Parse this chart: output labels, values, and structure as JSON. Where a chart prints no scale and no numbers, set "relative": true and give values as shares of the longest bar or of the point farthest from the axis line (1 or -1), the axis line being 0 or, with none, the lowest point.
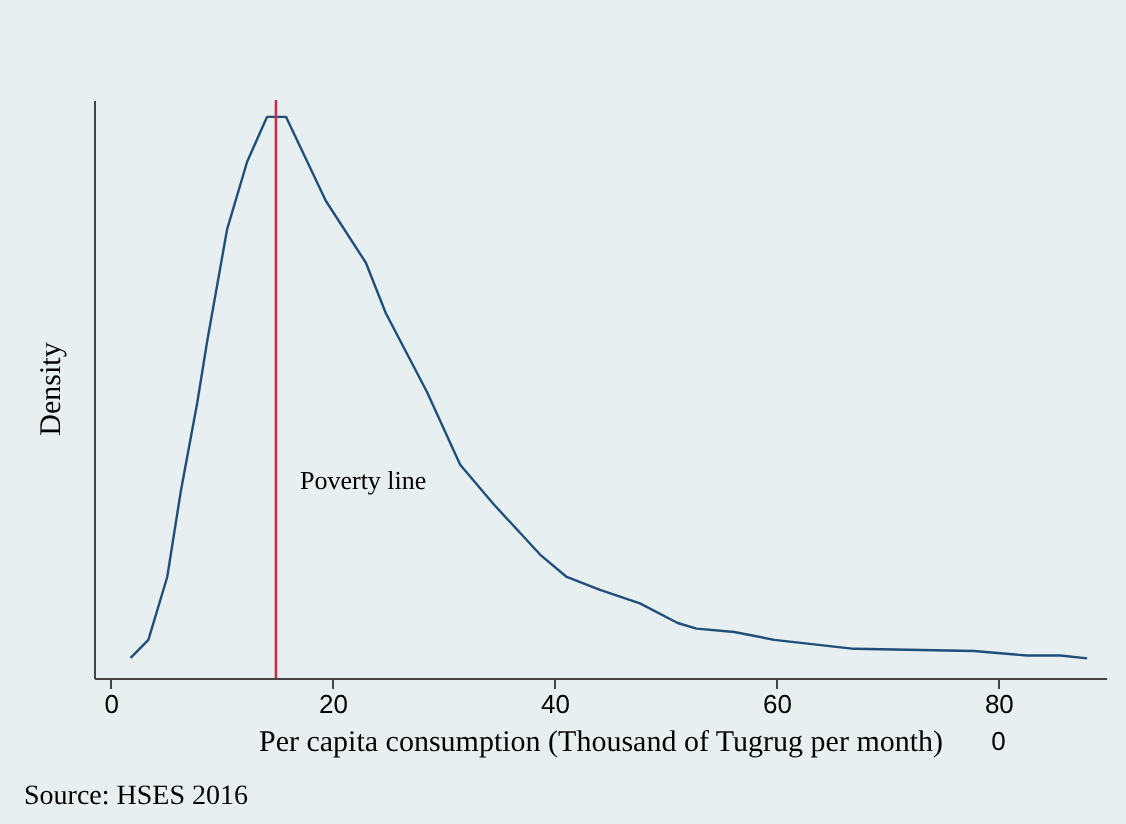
{
  "chart_data": {
    "type": "line",
    "relative": true,
    "xlabel": "Per capita consumption  (Thousand of Tugrug per month)",
    "ylabel": "Density",
    "xlim": [
      -1.5,
      89.7
    ],
    "xticks": [
      0,
      20,
      40,
      60,
      80
    ],
    "series": [
      {
        "color": "#1f4e79",
        "x": [
          1.8,
          3.4,
          5.1,
          6.3,
          7.8,
          8.7,
          10.5,
          12.3,
          14.1,
          15.8,
          19.4,
          23.0,
          24.8,
          28.5,
          31.5,
          34.5,
          38.7,
          41.1,
          44.1,
          47.7,
          51.1,
          52.8,
          56.2,
          59.8,
          67.0,
          77.8,
          82.6,
          85.6,
          88.0
        ],
        "values": [
          0.036,
          0.068,
          0.18,
          0.33,
          0.49,
          0.6,
          0.8,
          0.92,
          1.0,
          1.0,
          0.85,
          0.74,
          0.65,
          0.51,
          0.38,
          0.31,
          0.22,
          0.18,
          0.157,
          0.133,
          0.098,
          0.088,
          0.082,
          0.068,
          0.052,
          0.048,
          0.04,
          0.04,
          0.035
        ]
      }
    ],
    "ref_lines": [
      {
        "axis": "x",
        "value": 14.9,
        "label": "Poverty line",
        "color": "#c0304a"
      }
    ],
    "annotations": [
      "Source: HSES 2016",
      "0"
    ]
  }
}
